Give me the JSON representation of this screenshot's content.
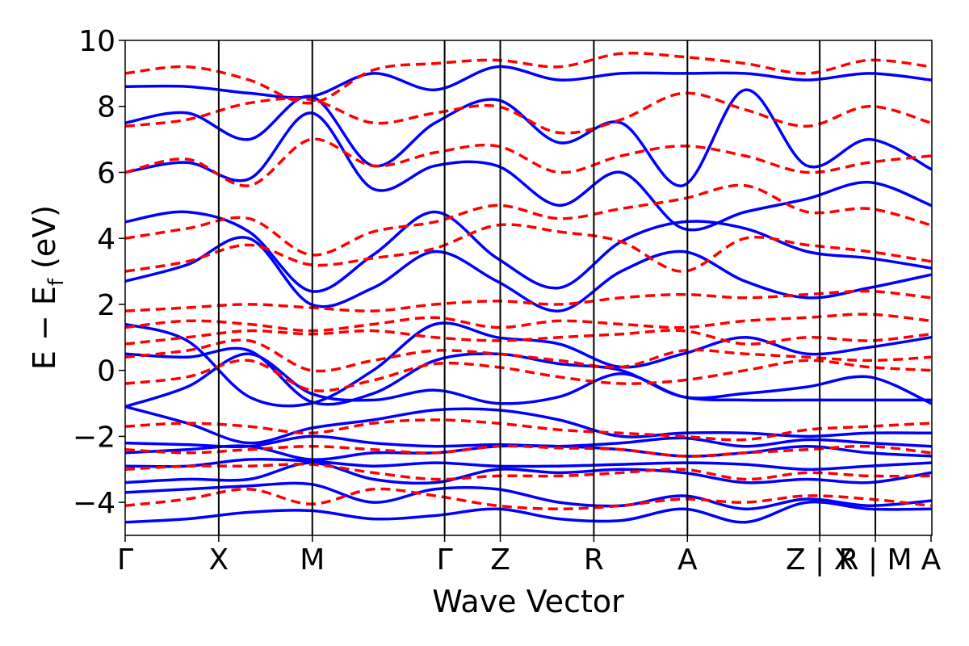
{
  "chart_data": {
    "type": "line",
    "xlabel": "Wave Vector",
    "ylabel": "E − E",
    "ylabel_sub": "f",
    "ylabel_unit": " (eV)",
    "ylim": [
      -5,
      10
    ],
    "yticks": [
      -4,
      -2,
      0,
      2,
      4,
      6,
      8,
      10
    ],
    "ytick_labels": [
      "−4",
      "−2",
      "0",
      "2",
      "4",
      "6",
      "8",
      "10"
    ],
    "x_range": [
      0,
      10
    ],
    "kpoints": [
      {
        "label": "Γ",
        "x": 0.0
      },
      {
        "label": "X",
        "x": 1.16
      },
      {
        "label": "M",
        "x": 2.32
      },
      {
        "label": "Γ",
        "x": 3.96
      },
      {
        "label": "Z",
        "x": 4.65
      },
      {
        "label": "R",
        "x": 5.81
      },
      {
        "label": "A",
        "x": 6.97
      },
      {
        "label": "Z | X",
        "x": 8.61
      },
      {
        "label": "R | M",
        "x": 9.3
      },
      {
        "label": "A",
        "x": 9.99
      }
    ],
    "colors": {
      "spin_up": "#0000ff",
      "spin_down": "#ff0000"
    },
    "series": [
      {
        "style": "solid",
        "color": "#0000ff",
        "bands": [
          [
            -4.6,
            -4.5,
            -4.3,
            -4.25,
            -4.5,
            -4.4,
            -4.2,
            -4.5,
            -4.55,
            -4.2,
            -4.6,
            -4.0,
            -4.2,
            -4.2
          ],
          [
            -3.7,
            -3.6,
            -3.5,
            -3.45,
            -4.0,
            -3.6,
            -3.6,
            -4.0,
            -4.1,
            -3.8,
            -4.2,
            -3.9,
            -4.1,
            -3.95
          ],
          [
            -3.4,
            -3.3,
            -3.3,
            -2.8,
            -3.3,
            -3.4,
            -3.0,
            -3.1,
            -3.0,
            -3.1,
            -3.4,
            -3.3,
            -3.4,
            -3.1
          ],
          [
            -2.9,
            -2.9,
            -2.7,
            -2.75,
            -2.9,
            -2.8,
            -2.9,
            -2.9,
            -2.85,
            -2.8,
            -2.85,
            -3.0,
            -2.9,
            -2.8
          ],
          [
            -2.5,
            -2.4,
            -2.3,
            -2.7,
            -2.5,
            -2.5,
            -2.3,
            -2.3,
            -2.4,
            -2.6,
            -2.5,
            -2.3,
            -2.5,
            -2.6
          ],
          [
            -2.2,
            -2.25,
            -2.3,
            -2.0,
            -2.2,
            -2.3,
            -2.25,
            -2.3,
            -2.2,
            -2.05,
            -2.3,
            -2.1,
            -2.2,
            -2.3
          ],
          [
            -1.1,
            -1.6,
            -2.2,
            -1.75,
            -1.5,
            -1.2,
            -1.2,
            -1.5,
            -2.0,
            -1.9,
            -1.9,
            -2.0,
            -1.9,
            -1.9
          ],
          [
            -1.1,
            -0.5,
            0.5,
            -0.7,
            -0.9,
            -0.6,
            -1.0,
            -0.8,
            -0.1,
            -0.8,
            -0.9,
            -0.9,
            -0.9,
            -0.9
          ],
          [
            0.5,
            0.4,
            0.6,
            -0.95,
            -0.7,
            0.3,
            0.5,
            0.2,
            0.0,
            -0.8,
            -0.7,
            -0.5,
            -0.2,
            -1.0
          ],
          [
            1.4,
            0.9,
            -0.8,
            -1.0,
            0.0,
            1.4,
            1.0,
            0.8,
            0.1,
            0.5,
            1.0,
            0.5,
            0.7,
            1.0
          ],
          [
            2.7,
            3.2,
            4.0,
            2.0,
            2.5,
            3.6,
            2.7,
            1.8,
            3.0,
            3.6,
            2.7,
            2.2,
            2.5,
            2.9
          ],
          [
            4.5,
            4.8,
            4.2,
            2.4,
            3.5,
            4.8,
            3.4,
            2.5,
            3.9,
            4.5,
            4.3,
            3.6,
            3.4,
            3.1
          ],
          [
            6.0,
            6.3,
            5.8,
            7.8,
            5.5,
            6.2,
            6.2,
            5.0,
            6.0,
            4.3,
            4.8,
            5.2,
            5.7,
            5.0
          ],
          [
            7.5,
            7.8,
            7.0,
            8.3,
            6.2,
            7.5,
            8.2,
            6.9,
            7.5,
            5.6,
            8.5,
            6.2,
            7.0,
            6.1
          ],
          [
            8.6,
            8.6,
            8.4,
            8.3,
            9.0,
            8.5,
            9.2,
            8.8,
            9.0,
            9.0,
            9.0,
            8.8,
            9.0,
            8.8
          ]
        ]
      },
      {
        "style": "dashed",
        "color": "#ff0000",
        "bands": [
          [
            -4.1,
            -3.9,
            -3.6,
            -4.05,
            -3.6,
            -3.8,
            -4.1,
            -4.2,
            -4.1,
            -3.9,
            -4.0,
            -3.8,
            -3.9,
            -4.1
          ],
          [
            -3.0,
            -2.9,
            -2.9,
            -2.85,
            -3.1,
            -3.3,
            -3.2,
            -3.2,
            -3.1,
            -3.0,
            -3.3,
            -3.1,
            -3.2,
            -3.2
          ],
          [
            -2.4,
            -2.5,
            -2.4,
            -2.3,
            -2.4,
            -2.5,
            -2.3,
            -2.35,
            -2.4,
            -2.6,
            -2.5,
            -2.4,
            -2.3,
            -2.5
          ],
          [
            -1.7,
            -1.6,
            -1.7,
            -1.9,
            -1.6,
            -1.5,
            -1.6,
            -1.8,
            -1.9,
            -2.0,
            -2.1,
            -1.8,
            -1.7,
            -1.6
          ],
          [
            -0.4,
            -0.2,
            0.3,
            -0.6,
            -0.3,
            0.2,
            0.1,
            -0.2,
            -0.4,
            -0.3,
            0.0,
            0.3,
            0.1,
            0.0
          ],
          [
            0.4,
            0.6,
            0.9,
            0.0,
            0.3,
            0.6,
            0.5,
            0.3,
            0.1,
            0.6,
            0.5,
            0.4,
            0.3,
            0.4
          ],
          [
            0.8,
            1.0,
            1.2,
            1.1,
            1.2,
            1.0,
            0.9,
            1.0,
            1.1,
            1.2,
            0.8,
            1.0,
            0.9,
            1.1
          ],
          [
            1.3,
            1.5,
            1.4,
            1.2,
            1.4,
            1.6,
            1.3,
            1.5,
            1.4,
            1.3,
            1.5,
            1.6,
            1.7,
            1.5
          ],
          [
            1.8,
            1.9,
            2.0,
            1.9,
            1.8,
            2.0,
            2.1,
            2.0,
            2.2,
            2.3,
            2.2,
            2.3,
            2.4,
            2.2
          ],
          [
            3.0,
            3.3,
            3.8,
            3.2,
            3.4,
            3.7,
            4.4,
            4.2,
            3.9,
            3.0,
            4.0,
            3.8,
            3.6,
            3.3
          ],
          [
            4.0,
            4.3,
            4.6,
            3.5,
            4.2,
            4.5,
            5.0,
            4.6,
            4.9,
            5.2,
            5.6,
            4.8,
            4.9,
            4.4
          ],
          [
            6.0,
            6.4,
            5.6,
            7.0,
            6.2,
            6.6,
            6.8,
            6.0,
            6.5,
            6.8,
            6.5,
            6.0,
            6.3,
            6.5
          ],
          [
            7.4,
            7.6,
            8.1,
            8.2,
            7.5,
            7.8,
            8.0,
            7.2,
            7.6,
            8.4,
            7.9,
            7.4,
            8.0,
            7.5
          ],
          [
            9.0,
            9.2,
            8.8,
            8.1,
            9.1,
            9.3,
            9.4,
            9.2,
            9.6,
            9.5,
            9.3,
            9.0,
            9.4,
            9.2
          ]
        ]
      }
    ],
    "grid": false,
    "legend": "none"
  }
}
